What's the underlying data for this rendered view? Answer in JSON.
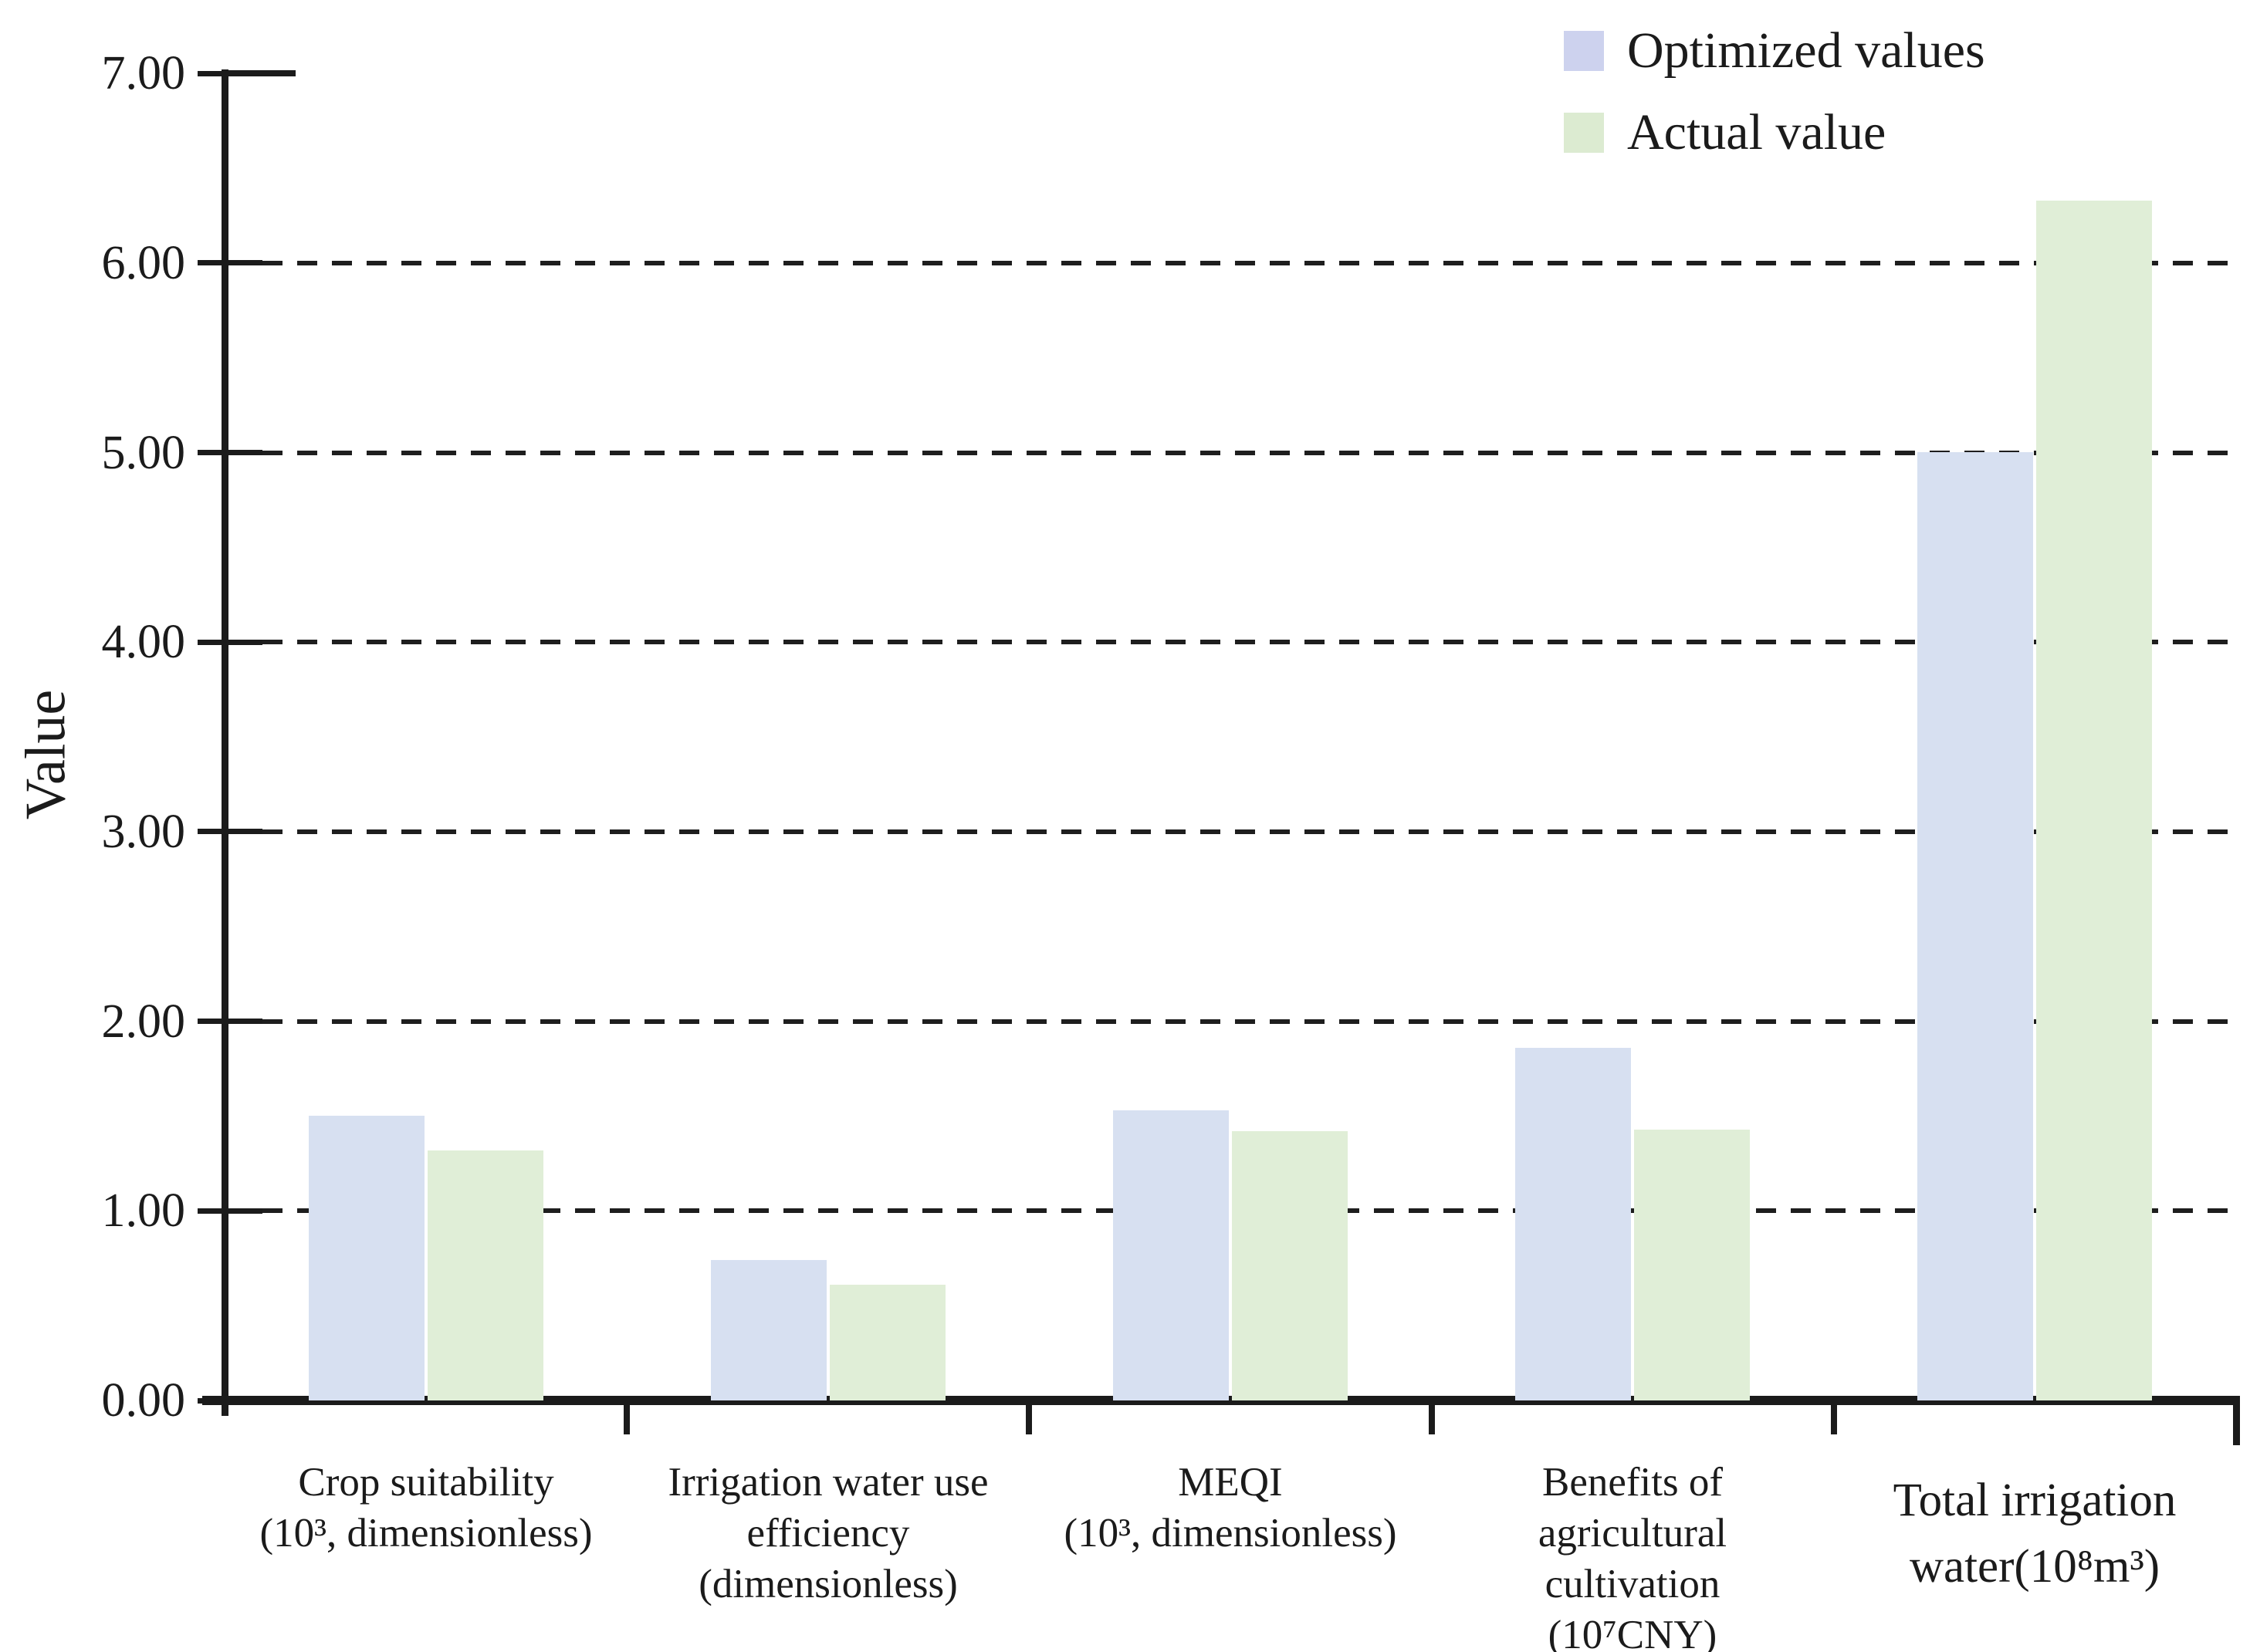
{
  "chart_data": {
    "type": "bar",
    "title": "",
    "xlabel": "",
    "ylabel": "Value",
    "ylim": [
      0,
      7
    ],
    "ytick_step": 1,
    "ytick_labels": [
      "0.00",
      "1.00",
      "2.00",
      "3.00",
      "4.00",
      "5.00",
      "6.00",
      "7.00"
    ],
    "grid": "horizontal-dashed",
    "legend_position": "top-right",
    "categories": [
      {
        "label_lines": [
          "Crop suitability",
          "(10³, dimensionless)"
        ]
      },
      {
        "label_lines": [
          "Irrigation water use",
          "efficiency",
          "(dimensionless)"
        ]
      },
      {
        "label_lines": [
          "MEQI",
          "(10³, dimensionless)"
        ]
      },
      {
        "label_lines": [
          "Benefits of",
          "agricultural",
          "cultivation",
          "(10⁷CNY)"
        ]
      },
      {
        "label_lines": [
          "Total irrigation",
          "water(10⁸m³)"
        ]
      }
    ],
    "series": [
      {
        "name": "Optimized values",
        "color": "#d7e0f1",
        "legend_color": "#cdd2ee",
        "values": [
          1.5,
          0.74,
          1.53,
          1.86,
          5.0
        ]
      },
      {
        "name": "Actual value",
        "color": "#e0eed7",
        "legend_color": "#dcebd1",
        "values": [
          1.32,
          0.61,
          1.42,
          1.43,
          6.33
        ]
      }
    ],
    "axis_color": "#1b1b1b",
    "text_color": "#1b1b1b",
    "background_color": "#ffffff"
  }
}
